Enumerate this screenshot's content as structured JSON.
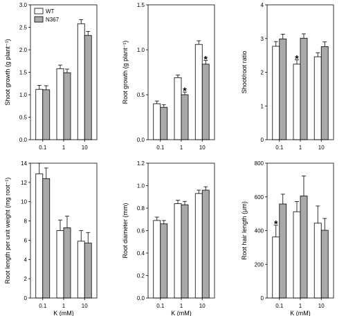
{
  "legend": {
    "items": [
      {
        "label": "WT",
        "color": "#ffffff"
      },
      {
        "label": "N367",
        "color": "#a9a9a9"
      }
    ]
  },
  "chart_data": [
    {
      "type": "bar",
      "categories": [
        "0.1",
        "1",
        "10"
      ],
      "ylabel": "Shoot growth (g plant⁻¹)",
      "xlabel": "",
      "ylim": [
        0,
        3.0
      ],
      "yticks": [
        "0.0",
        "0.5",
        "1.0",
        "1.5",
        "2.0",
        "2.5",
        "3.0"
      ],
      "series": [
        {
          "name": "WT",
          "values": [
            1.12,
            1.58,
            2.58
          ],
          "errors": [
            0.09,
            0.08,
            0.09
          ]
        },
        {
          "name": "N367",
          "values": [
            1.11,
            1.49,
            2.32
          ],
          "errors": [
            0.09,
            0.08,
            0.09
          ]
        }
      ],
      "significance": [
        null,
        null,
        null
      ]
    },
    {
      "type": "bar",
      "categories": [
        "0.1",
        "1",
        "10"
      ],
      "ylabel": "Root growth (g plant⁻¹)",
      "xlabel": "",
      "ylim": [
        0,
        1.5
      ],
      "yticks": [
        "0.0",
        "0.5",
        "1.0",
        "1.5"
      ],
      "series": [
        {
          "name": "WT",
          "values": [
            0.4,
            0.69,
            1.06
          ],
          "errors": [
            0.03,
            0.03,
            0.04
          ]
        },
        {
          "name": "N367",
          "values": [
            0.36,
            0.5,
            0.84
          ],
          "errors": [
            0.03,
            0.03,
            0.04
          ]
        }
      ],
      "significance": [
        null,
        "*",
        "*"
      ]
    },
    {
      "type": "bar",
      "categories": [
        "0.1",
        "1",
        "10"
      ],
      "ylabel": "Shoot/root ratio",
      "xlabel": "",
      "ylim": [
        0,
        4
      ],
      "yticks": [
        "0",
        "1",
        "2",
        "3",
        "4"
      ],
      "series": [
        {
          "name": "WT",
          "values": [
            2.77,
            2.24,
            2.46
          ],
          "errors": [
            0.14,
            0.13,
            0.12
          ]
        },
        {
          "name": "N367",
          "values": [
            2.99,
            3.01,
            2.76
          ],
          "errors": [
            0.14,
            0.13,
            0.14
          ]
        }
      ],
      "significance": [
        null,
        "*",
        null
      ]
    },
    {
      "type": "bar",
      "categories": [
        "0.1",
        "1",
        "10"
      ],
      "ylabel": "Root length per unit weight (mg root⁻¹)",
      "xlabel": "K (mM)",
      "ylim": [
        0,
        14
      ],
      "yticks": [
        "0",
        "2",
        "4",
        "6",
        "8",
        "10",
        "12",
        "14"
      ],
      "series": [
        {
          "name": "WT",
          "values": [
            12.9,
            7.0,
            5.9
          ],
          "errors": [
            1.1,
            1.1,
            1.1
          ]
        },
        {
          "name": "N367",
          "values": [
            12.4,
            7.3,
            5.7
          ],
          "errors": [
            1.1,
            1.2,
            1.1
          ]
        }
      ],
      "significance": [
        null,
        null,
        null
      ]
    },
    {
      "type": "bar",
      "categories": [
        "0.1",
        "1",
        "10"
      ],
      "ylabel": "Root diameter (mm)",
      "xlabel": "K (mM)",
      "ylim": [
        0,
        1.2
      ],
      "yticks": [
        "0.0",
        "0.2",
        "0.4",
        "0.6",
        "0.8",
        "1.0",
        "1.2"
      ],
      "series": [
        {
          "name": "WT",
          "values": [
            0.69,
            0.84,
            0.93
          ],
          "errors": [
            0.03,
            0.03,
            0.03
          ]
        },
        {
          "name": "N367",
          "values": [
            0.66,
            0.83,
            0.96
          ],
          "errors": [
            0.03,
            0.03,
            0.03
          ]
        }
      ],
      "significance": [
        null,
        null,
        null
      ]
    },
    {
      "type": "bar",
      "categories": [
        "0.1",
        "1",
        "10"
      ],
      "ylabel": "Root hair length (μm)",
      "xlabel": "K (mM)",
      "ylim": [
        0,
        800
      ],
      "yticks": [
        "0",
        "200",
        "400",
        "600",
        "800"
      ],
      "series": [
        {
          "name": "WT",
          "values": [
            362,
            512,
            444
          ],
          "errors": [
            70,
            60,
            102
          ]
        },
        {
          "name": "N367",
          "values": [
            558,
            606,
            402
          ],
          "errors": [
            58,
            118,
            70
          ]
        }
      ],
      "significance": [
        "*",
        null,
        null
      ]
    }
  ]
}
